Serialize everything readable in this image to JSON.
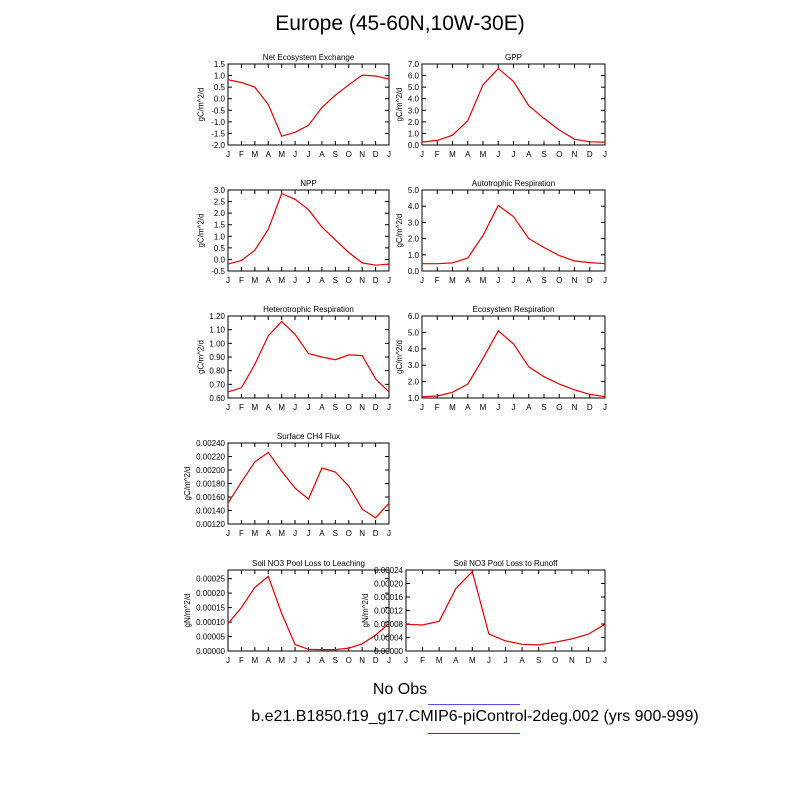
{
  "page": {
    "title": "Europe (45-60N,10W-30E)"
  },
  "legend": {
    "obs_label": "No Obs",
    "obs_color": "#4d4dff",
    "model_label": "b.e21.B1850.f19_g17.CMIP6-piControl-2deg.002 (yrs 900-999)",
    "model_color": "#e60000"
  },
  "chart_data": [
    {
      "type": "line",
      "title": "Net Ecosystem Exchange",
      "ylabel": "gC/m^2/d",
      "categories": [
        "J",
        "F",
        "M",
        "A",
        "M",
        "J",
        "J",
        "A",
        "S",
        "O",
        "N",
        "D",
        "J"
      ],
      "ylim": [
        -2.0,
        1.5
      ],
      "yticks": [
        "1.5",
        "1.0",
        "0.5",
        "0.0",
        "-0.5",
        "-1.0",
        "-1.5",
        "-2.0"
      ],
      "series": [
        {
          "values": [
            0.82,
            0.7,
            0.5,
            -0.25,
            -1.62,
            -1.45,
            -1.15,
            -0.38,
            0.15,
            0.6,
            1.02,
            0.98,
            0.85
          ]
        }
      ]
    },
    {
      "type": "line",
      "title": "GPP",
      "ylabel": "gC/m^2/d",
      "categories": [
        "J",
        "F",
        "M",
        "A",
        "M",
        "J",
        "J",
        "A",
        "S",
        "O",
        "N",
        "D",
        "J"
      ],
      "ylim": [
        0.0,
        7.0
      ],
      "yticks": [
        "7.0",
        "6.0",
        "5.0",
        "4.0",
        "3.0",
        "2.0",
        "1.0",
        "0.0"
      ],
      "series": [
        {
          "values": [
            0.25,
            0.4,
            0.85,
            2.1,
            5.2,
            6.6,
            5.5,
            3.4,
            2.3,
            1.3,
            0.5,
            0.28,
            0.25
          ]
        }
      ]
    },
    {
      "type": "line",
      "title": "NPP",
      "ylabel": "gC/m^2/d",
      "categories": [
        "J",
        "F",
        "M",
        "A",
        "M",
        "J",
        "J",
        "A",
        "S",
        "O",
        "N",
        "D",
        "J"
      ],
      "ylim": [
        -0.5,
        3.0
      ],
      "yticks": [
        "3.0",
        "2.5",
        "2.0",
        "1.5",
        "1.0",
        "0.5",
        "0.0",
        "-0.5"
      ],
      "series": [
        {
          "values": [
            -0.2,
            -0.05,
            0.4,
            1.3,
            2.85,
            2.6,
            2.15,
            1.4,
            0.85,
            0.3,
            -0.15,
            -0.25,
            -0.2
          ]
        }
      ]
    },
    {
      "type": "line",
      "title": "Autotrophic Respiration",
      "ylabel": "gC/m^2/d",
      "categories": [
        "J",
        "F",
        "M",
        "A",
        "M",
        "J",
        "J",
        "A",
        "S",
        "O",
        "N",
        "D",
        "J"
      ],
      "ylim": [
        0.0,
        5.0
      ],
      "yticks": [
        "5.0",
        "4.0",
        "3.0",
        "2.0",
        "1.0",
        "0.0"
      ],
      "series": [
        {
          "values": [
            0.45,
            0.45,
            0.5,
            0.8,
            2.2,
            4.05,
            3.35,
            2.0,
            1.45,
            0.95,
            0.62,
            0.52,
            0.45
          ]
        }
      ]
    },
    {
      "type": "line",
      "title": "Heterotrophic Respiration",
      "ylabel": "gC/m^2/d",
      "categories": [
        "J",
        "F",
        "M",
        "A",
        "M",
        "J",
        "J",
        "A",
        "S",
        "O",
        "N",
        "D",
        "J"
      ],
      "ylim": [
        0.6,
        1.2
      ],
      "yticks": [
        "1.20",
        "1.10",
        "1.00",
        "0.90",
        "0.80",
        "0.70",
        "0.60"
      ],
      "series": [
        {
          "values": [
            0.645,
            0.675,
            0.845,
            1.055,
            1.16,
            1.065,
            0.925,
            0.9,
            0.88,
            0.915,
            0.91,
            0.74,
            0.645
          ]
        }
      ]
    },
    {
      "type": "line",
      "title": "Ecosystem Respiration",
      "ylabel": "gC/m^2/d",
      "categories": [
        "J",
        "F",
        "M",
        "A",
        "M",
        "J",
        "J",
        "A",
        "S",
        "O",
        "N",
        "D",
        "J"
      ],
      "ylim": [
        1.0,
        6.0
      ],
      "yticks": [
        "6.0",
        "5.0",
        "4.0",
        "3.0",
        "2.0",
        "1.0"
      ],
      "series": [
        {
          "values": [
            1.08,
            1.12,
            1.35,
            1.85,
            3.4,
            5.1,
            4.3,
            2.9,
            2.3,
            1.85,
            1.5,
            1.22,
            1.08
          ]
        }
      ]
    },
    {
      "type": "line",
      "title": "Surface CH4 Flux",
      "ylabel": "gC/m^2/d",
      "categories": [
        "J",
        "F",
        "M",
        "A",
        "M",
        "J",
        "J",
        "A",
        "S",
        "O",
        "N",
        "D",
        "J"
      ],
      "ylim": [
        0.0012,
        0.0024
      ],
      "yticks": [
        "0.00240",
        "0.00220",
        "0.00200",
        "0.00180",
        "0.00160",
        "0.00140",
        "0.00120"
      ],
      "series": [
        {
          "values": [
            0.00151,
            0.00182,
            0.00212,
            0.00226,
            0.00198,
            0.00173,
            0.00157,
            0.00203,
            0.00197,
            0.00176,
            0.00142,
            0.00129,
            0.00151
          ]
        }
      ]
    },
    {
      "type": "line",
      "title": "Soil NO3 Pool Loss to Leaching",
      "ylabel": "gN/m^2/d",
      "categories": [
        "J",
        "F",
        "M",
        "A",
        "M",
        "J",
        "J",
        "A",
        "S",
        "O",
        "N",
        "D",
        "J"
      ],
      "ylim": [
        0.0,
        0.00028
      ],
      "yticks": [
        "0.00025",
        "0.00020",
        "0.00015",
        "0.00010",
        "0.00005",
        "0.00000"
      ],
      "series": [
        {
          "values": [
            9.5e-05,
            0.00015,
            0.00022,
            0.000258,
            0.00013,
            2.2e-05,
            6e-06,
            5e-06,
            5e-06,
            1e-05,
            2.5e-05,
            5.5e-05,
            9.5e-05
          ]
        }
      ]
    },
    {
      "type": "line",
      "title": "Soil NO3 Pool Loss to Runoff",
      "ylabel": "gN/m^2/d",
      "categories": [
        "J",
        "F",
        "M",
        "A",
        "M",
        "J",
        "J",
        "A",
        "S",
        "O",
        "N",
        "D",
        "J"
      ],
      "ylim": [
        0.0,
        0.00024
      ],
      "yticks": [
        "0.00024",
        "0.00020",
        "0.00016",
        "0.00012",
        "0.00008",
        "0.00004",
        "0.00000"
      ],
      "series": [
        {
          "values": [
            7.9e-05,
            7.7e-05,
            8.8e-05,
            0.000185,
            0.000235,
            5e-05,
            3e-05,
            2e-05,
            1.8e-05,
            2.6e-05,
            3.6e-05,
            5e-05,
            7.9e-05
          ]
        }
      ]
    }
  ]
}
